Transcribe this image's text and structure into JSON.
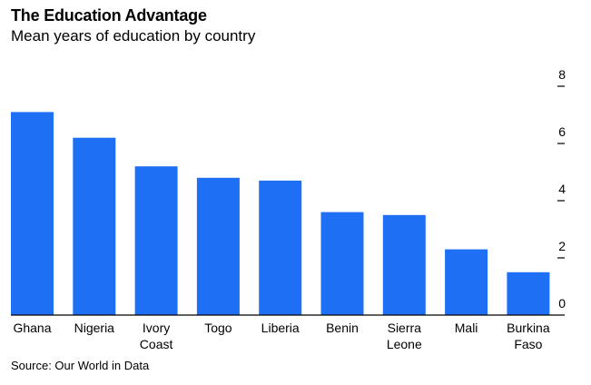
{
  "header": {
    "title": "The Education Advantage",
    "subtitle": "Mean years of education by country"
  },
  "footer": {
    "source": "Source: Our World in Data"
  },
  "colors": {
    "bar": "#1f6ff5",
    "axis": "#000000"
  },
  "chart_data": {
    "type": "bar",
    "title": "The Education Advantage",
    "subtitle": "Mean years of education by country",
    "xlabel": "",
    "ylabel": "",
    "categories": [
      "Ghana",
      "Nigeria",
      "Ivory Coast",
      "Togo",
      "Liberia",
      "Benin",
      "Sierra Leone",
      "Mali",
      "Burkina Faso"
    ],
    "category_lines": [
      [
        "Ghana"
      ],
      [
        "Nigeria"
      ],
      [
        "Ivory",
        "Coast"
      ],
      [
        "Togo"
      ],
      [
        "Liberia"
      ],
      [
        "Benin"
      ],
      [
        "Sierra",
        "Leone"
      ],
      [
        "Mali"
      ],
      [
        "Burkina",
        "Faso"
      ]
    ],
    "values": [
      7.1,
      6.2,
      5.2,
      4.8,
      4.7,
      3.6,
      3.5,
      2.3,
      1.5
    ],
    "ylim": [
      0,
      8
    ],
    "yticks": [
      0,
      2,
      4,
      6,
      8
    ],
    "y_axis_side": "right",
    "grid": false,
    "legend": "none"
  }
}
